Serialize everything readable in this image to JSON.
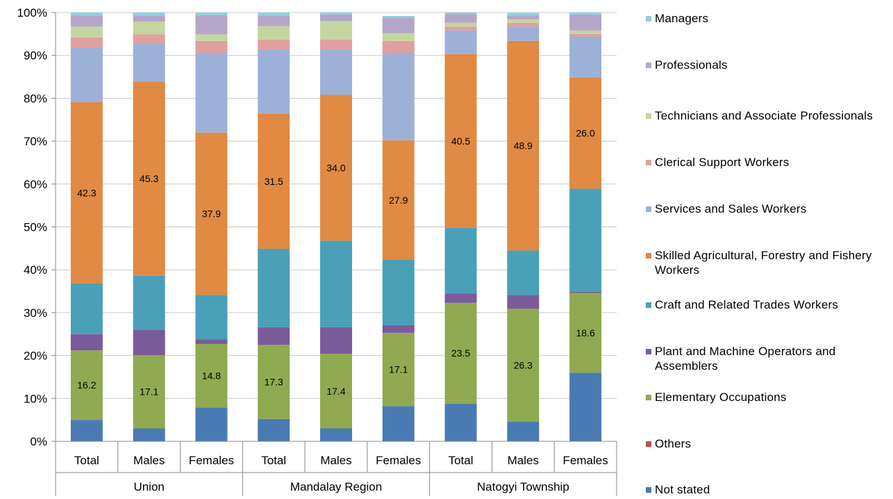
{
  "chart_data": {
    "type": "bar",
    "stacked": true,
    "percent_stacked": true,
    "grid": true,
    "legend_position": "right",
    "y_ticks": [
      "0%",
      "10%",
      "20%",
      "30%",
      "40%",
      "50%",
      "60%",
      "70%",
      "80%",
      "90%",
      "100%"
    ],
    "ylim": [
      0,
      100
    ],
    "categories": [
      "Total",
      "Males",
      "Females",
      "Total",
      "Males",
      "Females",
      "Total",
      "Males",
      "Females"
    ],
    "groups": [
      {
        "label": "Union",
        "span": 3
      },
      {
        "label": "Mandalay Region",
        "span": 3
      },
      {
        "label": "Natogyi Township",
        "span": 3
      }
    ],
    "series": [
      {
        "name": "Not stated",
        "color": "#4a7ab4",
        "values": [
          5.0,
          3.0,
          7.9,
          5.2,
          3.0,
          8.2,
          8.8,
          4.6,
          16.0
        ],
        "labels": [
          null,
          null,
          null,
          null,
          null,
          null,
          null,
          null,
          null
        ]
      },
      {
        "name": "Others",
        "color": "#c0504d",
        "values": [
          0.0,
          0.0,
          0.0,
          0.0,
          0.0,
          0.0,
          0.0,
          0.0,
          0.0
        ],
        "labels": [
          null,
          null,
          null,
          null,
          null,
          null,
          null,
          null,
          null
        ]
      },
      {
        "name": "Elementary Occupations",
        "color": "#8faa50",
        "values": [
          16.2,
          17.1,
          14.8,
          17.3,
          17.4,
          17.1,
          23.5,
          26.3,
          18.6
        ],
        "labels": [
          "16.2",
          "17.1",
          "14.8",
          "17.3",
          "17.4",
          "17.1",
          "23.5",
          "26.3",
          "18.6"
        ]
      },
      {
        "name": "Plant and Machine Operators and Assemblers",
        "color": "#7a5a9b",
        "values": [
          3.8,
          5.9,
          1.1,
          4.1,
          6.2,
          1.8,
          2.2,
          3.2,
          0.3
        ],
        "labels": [
          null,
          null,
          null,
          null,
          null,
          null,
          null,
          null,
          null
        ]
      },
      {
        "name": "Craft and Related Trades Workers",
        "color": "#4aa0b8",
        "values": [
          11.8,
          12.6,
          10.3,
          18.3,
          20.2,
          15.2,
          15.3,
          10.4,
          24.0
        ],
        "labels": [
          null,
          null,
          null,
          null,
          null,
          null,
          null,
          null,
          null
        ]
      },
      {
        "name": "Skilled Agricultural, Forestry and Fishery Workers",
        "color": "#e08a44",
        "values": [
          42.3,
          45.3,
          37.9,
          31.5,
          34.0,
          27.9,
          40.5,
          48.9,
          26.0
        ],
        "labels": [
          "42.3",
          "45.3",
          "37.9",
          "31.5",
          "34.0",
          "27.9",
          "40.5",
          "48.9",
          "26.0"
        ]
      },
      {
        "name": "Services and Sales Workers",
        "color": "#9db1d8",
        "values": [
          12.8,
          8.8,
          18.6,
          15.0,
          10.6,
          20.4,
          5.5,
          3.3,
          9.5
        ],
        "labels": [
          null,
          null,
          null,
          null,
          null,
          null,
          null,
          null,
          null
        ]
      },
      {
        "name": "Clerical Support Workers",
        "color": "#e0a0a0",
        "values": [
          2.3,
          2.2,
          2.8,
          2.3,
          2.3,
          2.8,
          0.9,
          0.9,
          0.6
        ],
        "labels": [
          null,
          null,
          null,
          null,
          null,
          null,
          null,
          null,
          null
        ]
      },
      {
        "name": "Technicians and Associate Professionals",
        "color": "#c4d6a0",
        "values": [
          2.5,
          3.0,
          1.5,
          3.1,
          4.3,
          1.8,
          0.9,
          0.8,
          0.8
        ],
        "labels": [
          null,
          null,
          null,
          null,
          null,
          null,
          null,
          null,
          null
        ]
      },
      {
        "name": "Professionals",
        "color": "#b4a6c8",
        "values": [
          2.6,
          1.4,
          4.5,
          2.5,
          1.5,
          3.6,
          2.0,
          0.9,
          3.7
        ],
        "labels": [
          null,
          null,
          null,
          null,
          null,
          null,
          null,
          null,
          null
        ]
      },
      {
        "name": "Managers",
        "color": "#8fd0e0",
        "values": [
          0.7,
          0.7,
          0.6,
          0.7,
          0.5,
          0.4,
          0.4,
          0.6,
          0.5
        ],
        "labels": [
          null,
          null,
          null,
          null,
          null,
          null,
          null,
          null,
          null
        ]
      }
    ],
    "legend": [
      {
        "name": "Managers",
        "color": "#8fd0e0"
      },
      {
        "name": "Professionals",
        "color": "#b4a6c8"
      },
      {
        "name": "Technicians and Associate Professionals",
        "color": "#c4d6a0"
      },
      {
        "name": "Clerical Support Workers",
        "color": "#e0a0a0"
      },
      {
        "name": "Services and Sales Workers",
        "color": "#9db1d8"
      },
      {
        "name": "Skilled Agricultural, Forestry and Fishery Workers",
        "color": "#e08a44"
      },
      {
        "name": "Craft and Related Trades Workers",
        "color": "#4aa0b8"
      },
      {
        "name": "Plant and Machine Operators and Assemblers",
        "color": "#7a5a9b"
      },
      {
        "name": "Elementary Occupations",
        "color": "#8faa50"
      },
      {
        "name": "Others",
        "color": "#c0504d"
      },
      {
        "name": "Not stated",
        "color": "#4a7ab4"
      }
    ]
  }
}
